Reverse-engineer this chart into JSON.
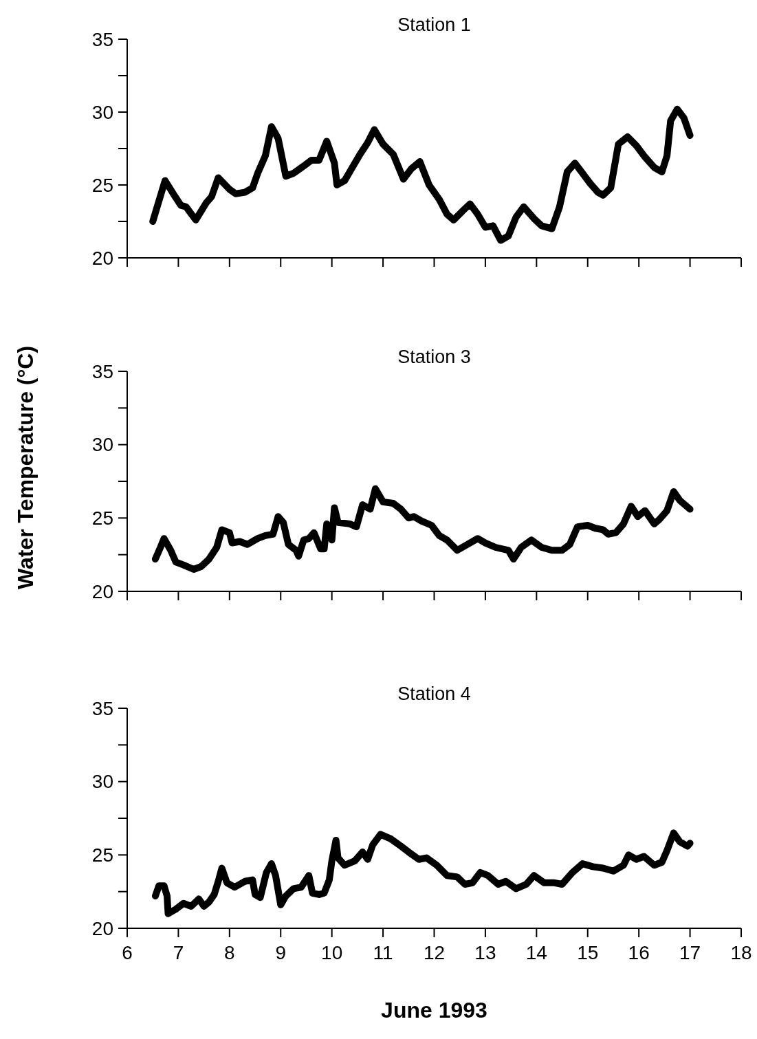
{
  "chart_data": [
    {
      "type": "line",
      "title": "Station 1",
      "xlim": [
        6,
        18
      ],
      "xticks": [
        6,
        7,
        8,
        9,
        10,
        11,
        12,
        13,
        14,
        15,
        16,
        17,
        18
      ],
      "ylim": [
        20,
        35
      ],
      "yticks": [
        20,
        {
          "value": 22.5,
          "label": null
        },
        25,
        {
          "value": 27.5,
          "label": null
        },
        30,
        {
          "value": 32.5,
          "label": null
        },
        35
      ],
      "tick_labels": "y",
      "grid": false,
      "line_style": "solid",
      "marker": "none",
      "series": [
        {
          "color": "#000000",
          "x": [
            6.5,
            6.74,
            6.9,
            7.05,
            7.15,
            7.34,
            7.55,
            7.65,
            7.78,
            8.0,
            8.12,
            8.3,
            8.45,
            8.55,
            8.7,
            8.82,
            8.95,
            9.1,
            9.25,
            9.45,
            9.6,
            9.75,
            9.9,
            10.05,
            10.1,
            10.25,
            10.4,
            10.55,
            10.7,
            10.83,
            11.0,
            11.2,
            11.4,
            11.55,
            11.72,
            11.9,
            12.1,
            12.25,
            12.38,
            12.55,
            12.7,
            12.85,
            13.0,
            13.15,
            13.3,
            13.45,
            13.6,
            13.75,
            13.95,
            14.1,
            14.3,
            14.45,
            14.6,
            14.75,
            14.9,
            15.05,
            15.2,
            15.3,
            15.45,
            15.6,
            15.78,
            15.95,
            16.1,
            16.3,
            16.45,
            16.55,
            16.62,
            16.75,
            16.88,
            17.0
          ],
          "values": [
            22.5,
            25.3,
            24.4,
            23.6,
            23.5,
            22.6,
            23.8,
            24.2,
            25.5,
            24.7,
            24.4,
            24.5,
            24.8,
            25.8,
            27.0,
            29.0,
            28.2,
            25.6,
            25.8,
            26.3,
            26.7,
            26.7,
            28.0,
            26.5,
            25.0,
            25.3,
            26.2,
            27.1,
            27.9,
            28.8,
            27.8,
            27.1,
            25.4,
            26.1,
            26.6,
            25.0,
            24.0,
            23.0,
            22.6,
            23.2,
            23.7,
            23.0,
            22.1,
            22.2,
            21.2,
            21.5,
            22.8,
            23.5,
            22.7,
            22.2,
            22.0,
            23.5,
            25.9,
            26.5,
            25.8,
            25.1,
            24.5,
            24.3,
            24.8,
            27.8,
            28.3,
            27.7,
            27.0,
            26.2,
            25.9,
            27.0,
            29.4,
            30.2,
            29.6,
            28.4
          ]
        }
      ]
    },
    {
      "type": "line",
      "title": "Station 3",
      "ylabel": "Water Temperature (°C)",
      "xlim": [
        6,
        18
      ],
      "xticks": [
        6,
        7,
        8,
        9,
        10,
        11,
        12,
        13,
        14,
        15,
        16,
        17,
        18
      ],
      "ylim": [
        20,
        35
      ],
      "yticks": [
        20,
        {
          "value": 22.5,
          "label": null
        },
        25,
        {
          "value": 27.5,
          "label": null
        },
        30,
        {
          "value": 32.5,
          "label": null
        },
        35
      ],
      "tick_labels": "y",
      "grid": false,
      "line_style": "solid",
      "marker": "none",
      "series": [
        {
          "color": "#000000",
          "x": [
            6.55,
            6.65,
            6.72,
            6.85,
            6.95,
            7.1,
            7.3,
            7.45,
            7.6,
            7.75,
            7.85,
            8.0,
            8.05,
            8.2,
            8.35,
            8.55,
            8.7,
            8.85,
            8.95,
            9.05,
            9.15,
            9.3,
            9.35,
            9.45,
            9.55,
            9.65,
            9.78,
            9.85,
            9.9,
            10.0,
            10.05,
            10.12,
            10.35,
            10.48,
            10.6,
            10.75,
            10.85,
            11.0,
            11.2,
            11.35,
            11.5,
            11.6,
            11.75,
            11.95,
            12.1,
            12.25,
            12.45,
            12.65,
            12.85,
            13.0,
            13.2,
            13.45,
            13.55,
            13.7,
            13.9,
            14.1,
            14.3,
            14.5,
            14.65,
            14.8,
            15.0,
            15.15,
            15.3,
            15.4,
            15.55,
            15.7,
            15.85,
            15.98,
            16.12,
            16.3,
            16.4,
            16.55,
            16.68,
            16.8,
            17.0
          ],
          "values": [
            22.2,
            23.0,
            23.6,
            22.8,
            22.0,
            21.8,
            21.5,
            21.7,
            22.2,
            23.0,
            24.2,
            24.0,
            23.3,
            23.4,
            23.2,
            23.6,
            23.8,
            23.9,
            25.1,
            24.7,
            23.2,
            22.8,
            22.4,
            23.5,
            23.6,
            24.0,
            22.9,
            22.9,
            24.6,
            23.5,
            25.7,
            24.7,
            24.6,
            24.4,
            25.9,
            25.6,
            27.0,
            26.1,
            26.0,
            25.6,
            25.0,
            25.1,
            24.8,
            24.5,
            23.8,
            23.5,
            22.8,
            23.2,
            23.6,
            23.3,
            23.0,
            22.8,
            22.2,
            23.0,
            23.5,
            23.0,
            22.8,
            22.8,
            23.2,
            24.4,
            24.5,
            24.3,
            24.2,
            23.9,
            24.0,
            24.6,
            25.8,
            25.1,
            25.5,
            24.6,
            24.9,
            25.5,
            26.8,
            26.2,
            25.6
          ]
        }
      ]
    },
    {
      "type": "line",
      "title": "Station 4",
      "xlabel": "June 1993",
      "xlim": [
        6,
        18
      ],
      "xticks": [
        6,
        7,
        8,
        9,
        10,
        11,
        12,
        13,
        14,
        15,
        16,
        17,
        18
      ],
      "ylim": [
        20,
        35
      ],
      "yticks": [
        20,
        {
          "value": 22.5,
          "label": null
        },
        25,
        {
          "value": 27.5,
          "label": null
        },
        30,
        {
          "value": 32.5,
          "label": null
        },
        35
      ],
      "grid": false,
      "line_style": "solid",
      "marker": "none",
      "series": [
        {
          "color": "#000000",
          "x": [
            6.55,
            6.62,
            6.72,
            6.78,
            6.8,
            6.95,
            7.1,
            7.25,
            7.4,
            7.5,
            7.6,
            7.7,
            7.78,
            7.85,
            7.95,
            8.1,
            8.3,
            8.45,
            8.5,
            8.6,
            8.72,
            8.82,
            8.9,
            9.0,
            9.1,
            9.25,
            9.4,
            9.55,
            9.62,
            9.75,
            9.85,
            9.95,
            10.0,
            10.08,
            10.12,
            10.25,
            10.45,
            10.6,
            10.7,
            10.8,
            10.95,
            11.15,
            11.35,
            11.5,
            11.7,
            11.85,
            12.05,
            12.25,
            12.45,
            12.6,
            12.75,
            12.9,
            13.05,
            13.25,
            13.4,
            13.6,
            13.8,
            13.95,
            14.15,
            14.35,
            14.5,
            14.7,
            14.9,
            15.1,
            15.3,
            15.5,
            15.7,
            15.8,
            15.95,
            16.1,
            16.3,
            16.45,
            16.55,
            16.68,
            16.8,
            16.95,
            17.0
          ],
          "values": [
            22.2,
            22.9,
            22.9,
            22.2,
            21.0,
            21.3,
            21.7,
            21.5,
            22.0,
            21.5,
            21.8,
            22.3,
            23.2,
            24.1,
            23.1,
            22.8,
            23.2,
            23.3,
            22.3,
            22.1,
            23.8,
            24.4,
            23.6,
            21.6,
            22.2,
            22.7,
            22.8,
            23.6,
            22.4,
            22.3,
            22.4,
            23.3,
            24.6,
            26.0,
            24.8,
            24.3,
            24.6,
            25.2,
            24.7,
            25.7,
            26.4,
            26.1,
            25.6,
            25.2,
            24.7,
            24.8,
            24.3,
            23.6,
            23.5,
            23.0,
            23.1,
            23.8,
            23.6,
            23.0,
            23.2,
            22.7,
            23.0,
            23.6,
            23.1,
            23.1,
            23.0,
            23.8,
            24.4,
            24.2,
            24.1,
            23.9,
            24.3,
            25.0,
            24.7,
            24.9,
            24.3,
            24.5,
            25.3,
            26.5,
            25.9,
            25.6,
            25.8
          ]
        }
      ]
    }
  ]
}
